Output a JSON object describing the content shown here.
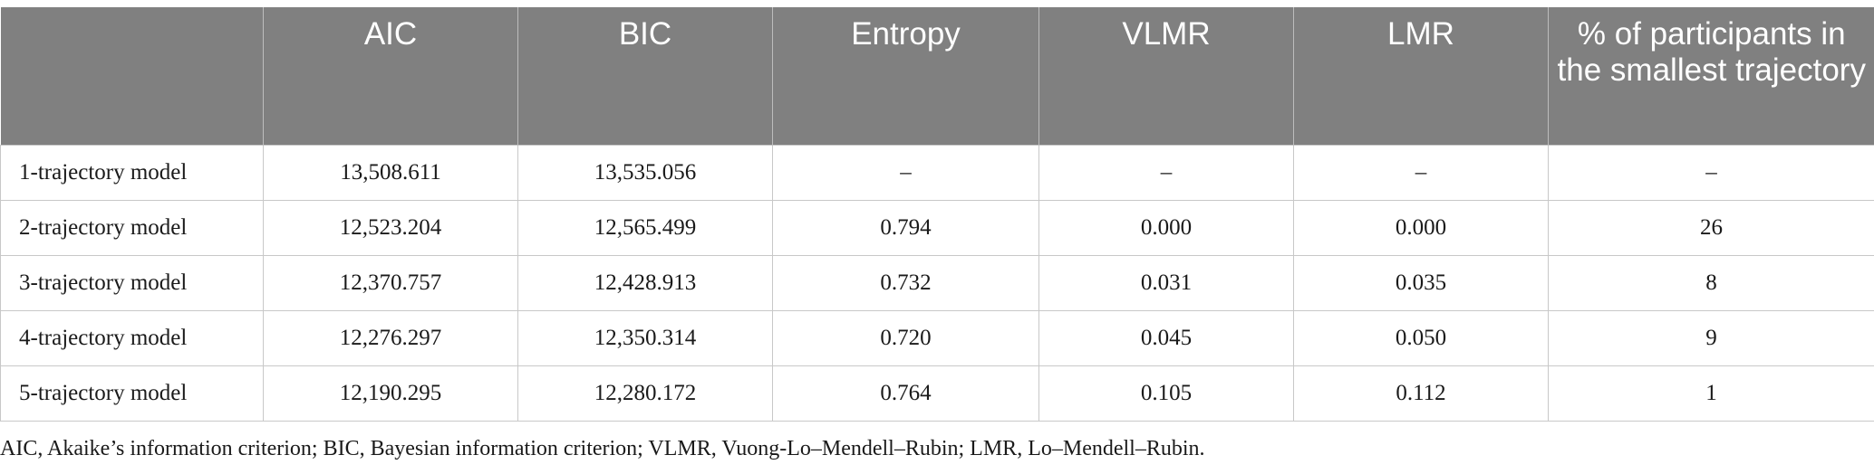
{
  "table": {
    "headers": [
      "",
      "AIC",
      "BIC",
      "Entropy",
      "VLMR",
      "LMR",
      "% of participants in the smallest trajectory"
    ],
    "rows": [
      [
        "1-trajectory model",
        "13,508.611",
        "13,535.056",
        "–",
        "–",
        "–",
        "–"
      ],
      [
        "2-trajectory model",
        "12,523.204",
        "12,565.499",
        "0.794",
        "0.000",
        "0.000",
        "26"
      ],
      [
        "3-trajectory model",
        "12,370.757",
        "12,428.913",
        "0.732",
        "0.031",
        "0.035",
        "8"
      ],
      [
        "4-trajectory model",
        "12,276.297",
        "12,350.314",
        "0.720",
        "0.045",
        "0.050",
        "9"
      ],
      [
        "5-trajectory model",
        "12,190.295",
        "12,280.172",
        "0.764",
        "0.105",
        "0.112",
        "1"
      ]
    ]
  },
  "footnote": "AIC, Akaike’s information criterion; BIC, Bayesian information criterion; VLMR, Vuong-Lo–Mendell–Rubin; LMR, Lo–Mendell–Rubin.",
  "colors": {
    "header_bg": "#808080",
    "header_text": "#ffffff",
    "grid_line": "#c8c8c8"
  }
}
